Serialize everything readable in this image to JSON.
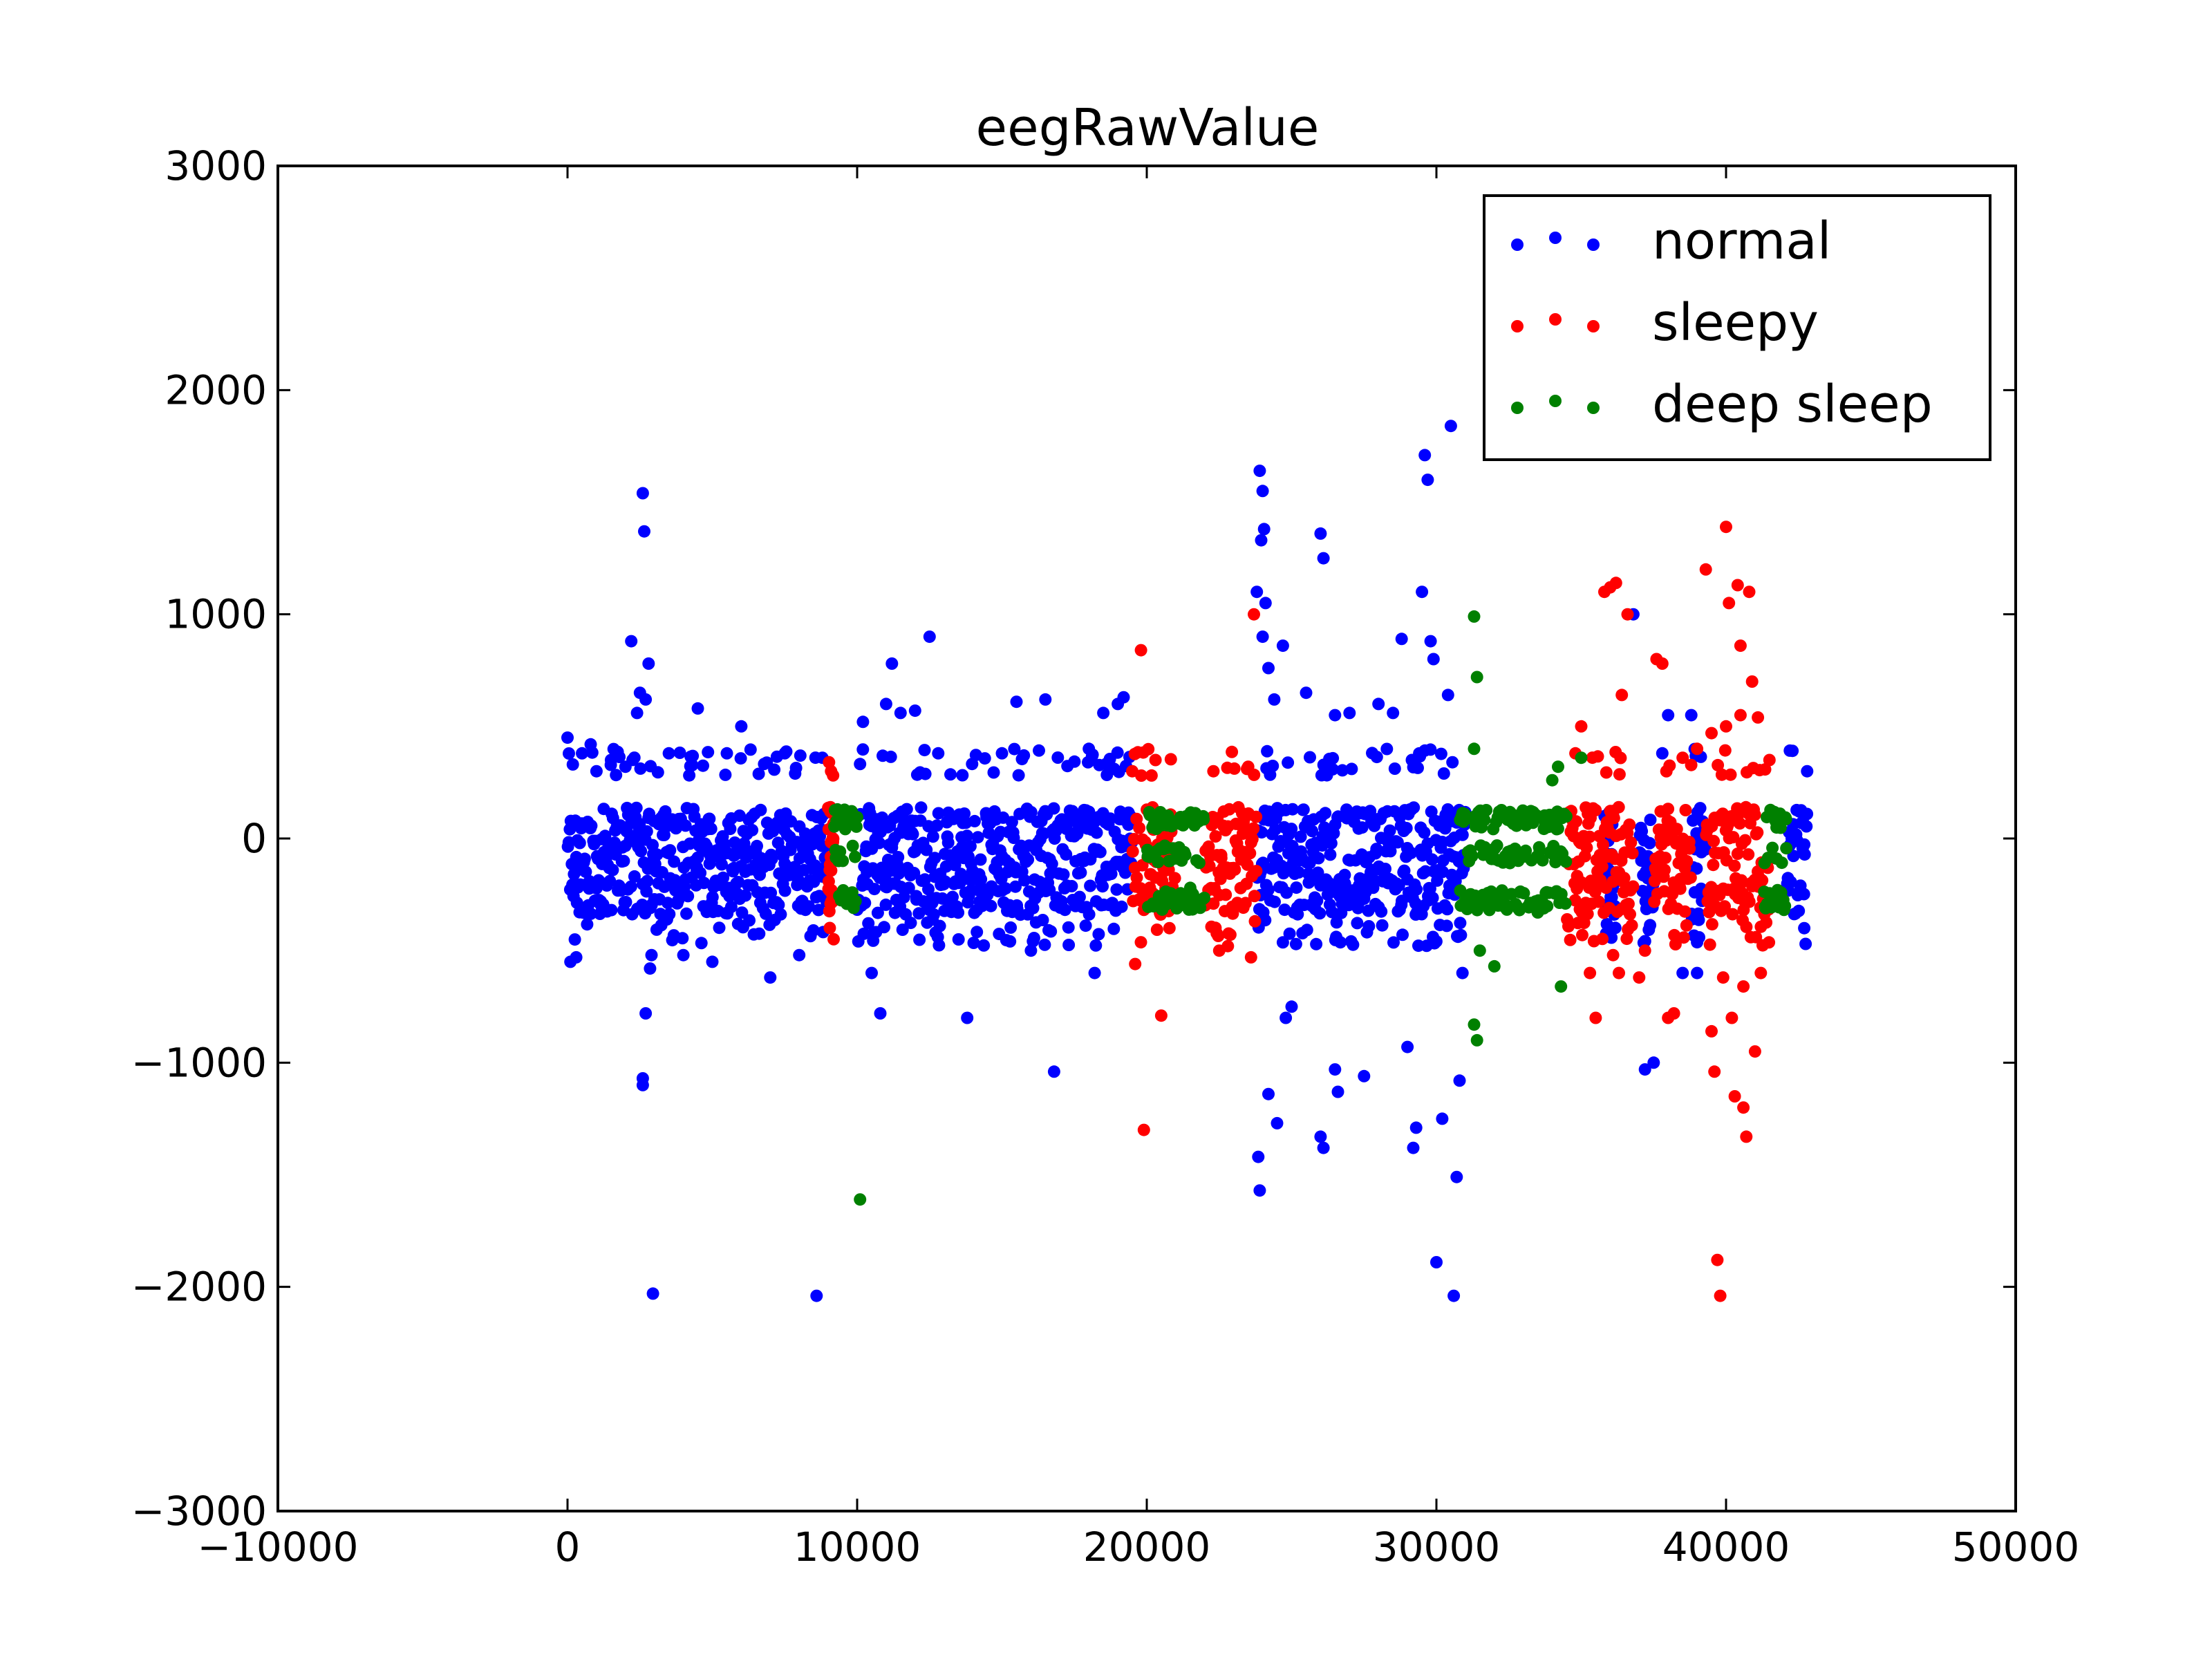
{
  "chart_data": {
    "type": "scatter",
    "title": "eegRawValue",
    "xlabel": "",
    "ylabel": "",
    "xlim": [
      -10000,
      50000
    ],
    "ylim": [
      -3000,
      3000
    ],
    "x_ticks": [
      -10000,
      0,
      10000,
      20000,
      30000,
      40000,
      50000
    ],
    "y_ticks": [
      -3000,
      -2000,
      -1000,
      0,
      1000,
      2000,
      3000
    ],
    "x_tick_labels": [
      "−10000",
      "0",
      "10000",
      "20000",
      "30000",
      "40000",
      "50000"
    ],
    "y_tick_labels": [
      "−3000",
      "−2000",
      "−1000",
      "0",
      "1000",
      "2000",
      "3000"
    ],
    "grid": false,
    "legend_position": "top-right",
    "series": [
      {
        "name": "normal",
        "color": "#0000ff",
        "segments": [
          [
            0,
            9000
          ],
          [
            10000,
            19500
          ],
          [
            23800,
            31000
          ],
          [
            35800,
            36200
          ],
          [
            37000,
            37500
          ],
          [
            38800,
            39300
          ],
          [
            42100,
            42800
          ]
        ],
        "points": [
          [
            0,
            450
          ],
          [
            100,
            -550
          ],
          [
            300,
            -530
          ],
          [
            500,
            380
          ],
          [
            800,
            420
          ],
          [
            1000,
            300
          ],
          [
            1500,
            350
          ],
          [
            2000,
            320
          ],
          [
            2200,
            880
          ],
          [
            2400,
            560
          ],
          [
            2500,
            650
          ],
          [
            2600,
            1540
          ],
          [
            2650,
            1370
          ],
          [
            2700,
            620
          ],
          [
            2800,
            780
          ],
          [
            2850,
            -580
          ],
          [
            2900,
            -520
          ],
          [
            2950,
            -2030
          ],
          [
            2600,
            -1070
          ],
          [
            2600,
            -1100
          ],
          [
            2700,
            -780
          ],
          [
            3500,
            380
          ],
          [
            4000,
            -520
          ],
          [
            4500,
            580
          ],
          [
            5000,
            -550
          ],
          [
            5500,
            380
          ],
          [
            6000,
            500
          ],
          [
            7000,
            -620
          ],
          [
            7500,
            380
          ],
          [
            8000,
            -520
          ],
          [
            8600,
            -2040
          ],
          [
            8800,
            360
          ],
          [
            10200,
            520
          ],
          [
            10500,
            -600
          ],
          [
            10800,
            -780
          ],
          [
            11000,
            600
          ],
          [
            11200,
            780
          ],
          [
            11500,
            560
          ],
          [
            12000,
            570
          ],
          [
            12500,
            900
          ],
          [
            12800,
            380
          ],
          [
            13500,
            -450
          ],
          [
            13800,
            -800
          ],
          [
            15000,
            380
          ],
          [
            15500,
            610
          ],
          [
            16000,
            -500
          ],
          [
            16500,
            620
          ],
          [
            16800,
            -1040
          ],
          [
            18000,
            400
          ],
          [
            18500,
            560
          ],
          [
            19000,
            600
          ],
          [
            19200,
            630
          ],
          [
            18200,
            -600
          ],
          [
            23900,
            1640
          ],
          [
            24000,
            1550
          ],
          [
            23950,
            1330
          ],
          [
            24050,
            1380
          ],
          [
            23800,
            1100
          ],
          [
            24100,
            1050
          ],
          [
            24000,
            900
          ],
          [
            24200,
            760
          ],
          [
            24400,
            620
          ],
          [
            24700,
            860
          ],
          [
            23850,
            -1420
          ],
          [
            23900,
            -1570
          ],
          [
            24200,
            -1140
          ],
          [
            24500,
            -1270
          ],
          [
            24800,
            -800
          ],
          [
            25000,
            -750
          ],
          [
            25500,
            650
          ],
          [
            26000,
            1360
          ],
          [
            26100,
            1250
          ],
          [
            26500,
            550
          ],
          [
            26000,
            -1330
          ],
          [
            26100,
            -1380
          ],
          [
            26500,
            -1030
          ],
          [
            26600,
            -1130
          ],
          [
            27000,
            560
          ],
          [
            27500,
            -1060
          ],
          [
            28000,
            600
          ],
          [
            28500,
            560
          ],
          [
            28800,
            890
          ],
          [
            29000,
            -930
          ],
          [
            29200,
            -1380
          ],
          [
            29300,
            -1290
          ],
          [
            29500,
            1100
          ],
          [
            29600,
            1710
          ],
          [
            29700,
            1600
          ],
          [
            29800,
            880
          ],
          [
            29900,
            800
          ],
          [
            30000,
            -1890
          ],
          [
            30200,
            -1250
          ],
          [
            30400,
            640
          ],
          [
            30500,
            1840
          ],
          [
            30600,
            -2040
          ],
          [
            30700,
            -1510
          ],
          [
            30800,
            -1080
          ],
          [
            30900,
            -600
          ],
          [
            36800,
            1000
          ],
          [
            37200,
            -1030
          ],
          [
            37500,
            -1000
          ],
          [
            37800,
            380
          ],
          [
            38000,
            550
          ],
          [
            38500,
            -600
          ],
          [
            38800,
            550
          ],
          [
            39000,
            -600
          ],
          [
            42800,
            300
          ],
          [
            42700,
            -400
          ]
        ]
      },
      {
        "name": "sleepy",
        "color": "#ff0000",
        "segments": [
          [
            9000,
            9200
          ],
          [
            19500,
            21000
          ],
          [
            22000,
            23800
          ],
          [
            34500,
            36800
          ],
          [
            37500,
            38800
          ],
          [
            39300,
            41500
          ]
        ],
        "points": [
          [
            9100,
            300
          ],
          [
            19500,
            300
          ],
          [
            19600,
            -560
          ],
          [
            19800,
            840
          ],
          [
            19900,
            -1300
          ],
          [
            20300,
            350
          ],
          [
            20500,
            -790
          ],
          [
            22300,
            300
          ],
          [
            22500,
            -500
          ],
          [
            22800,
            -480
          ],
          [
            23500,
            320
          ],
          [
            23600,
            -530
          ],
          [
            23700,
            1000
          ],
          [
            34800,
            380
          ],
          [
            35000,
            500
          ],
          [
            35300,
            -600
          ],
          [
            35500,
            -800
          ],
          [
            35800,
            1100
          ],
          [
            36000,
            1120
          ],
          [
            36200,
            1140
          ],
          [
            36400,
            640
          ],
          [
            36100,
            -520
          ],
          [
            36300,
            -600
          ],
          [
            36600,
            1000
          ],
          [
            37000,
            -620
          ],
          [
            37200,
            -500
          ],
          [
            37600,
            800
          ],
          [
            37800,
            780
          ],
          [
            38000,
            -800
          ],
          [
            38200,
            -780
          ],
          [
            38500,
            360
          ],
          [
            39000,
            400
          ],
          [
            39300,
            1200
          ],
          [
            39500,
            -860
          ],
          [
            39600,
            -1040
          ],
          [
            39700,
            -1880
          ],
          [
            39800,
            -2040
          ],
          [
            40000,
            1390
          ],
          [
            40100,
            1050
          ],
          [
            40200,
            -800
          ],
          [
            40300,
            -1150
          ],
          [
            40400,
            1130
          ],
          [
            40500,
            860
          ],
          [
            40600,
            -1200
          ],
          [
            40700,
            -1330
          ],
          [
            40800,
            1100
          ],
          [
            40900,
            700
          ],
          [
            41000,
            -950
          ],
          [
            41100,
            540
          ],
          [
            41200,
            -600
          ],
          [
            40000,
            500
          ],
          [
            40500,
            550
          ],
          [
            39500,
            470
          ],
          [
            39900,
            -620
          ],
          [
            40600,
            -660
          ],
          [
            41500,
            350
          ]
        ]
      },
      {
        "name": "deep sleep",
        "color": "#008000",
        "segments": [
          [
            9200,
            10000
          ],
          [
            20000,
            22000
          ],
          [
            30800,
            34500
          ],
          [
            41300,
            42100
          ]
        ],
        "points": [
          [
            9500,
            -100
          ],
          [
            10100,
            -1610
          ],
          [
            20800,
            -100
          ],
          [
            21500,
            -220
          ],
          [
            31300,
            990
          ],
          [
            31400,
            720
          ],
          [
            31300,
            400
          ],
          [
            31300,
            -830
          ],
          [
            31400,
            -900
          ],
          [
            31500,
            -500
          ],
          [
            32000,
            -570
          ],
          [
            33500,
            -330
          ],
          [
            34000,
            260
          ],
          [
            34200,
            320
          ],
          [
            34300,
            -660
          ],
          [
            35000,
            360
          ],
          [
            42000,
            -300
          ]
        ]
      }
    ]
  }
}
